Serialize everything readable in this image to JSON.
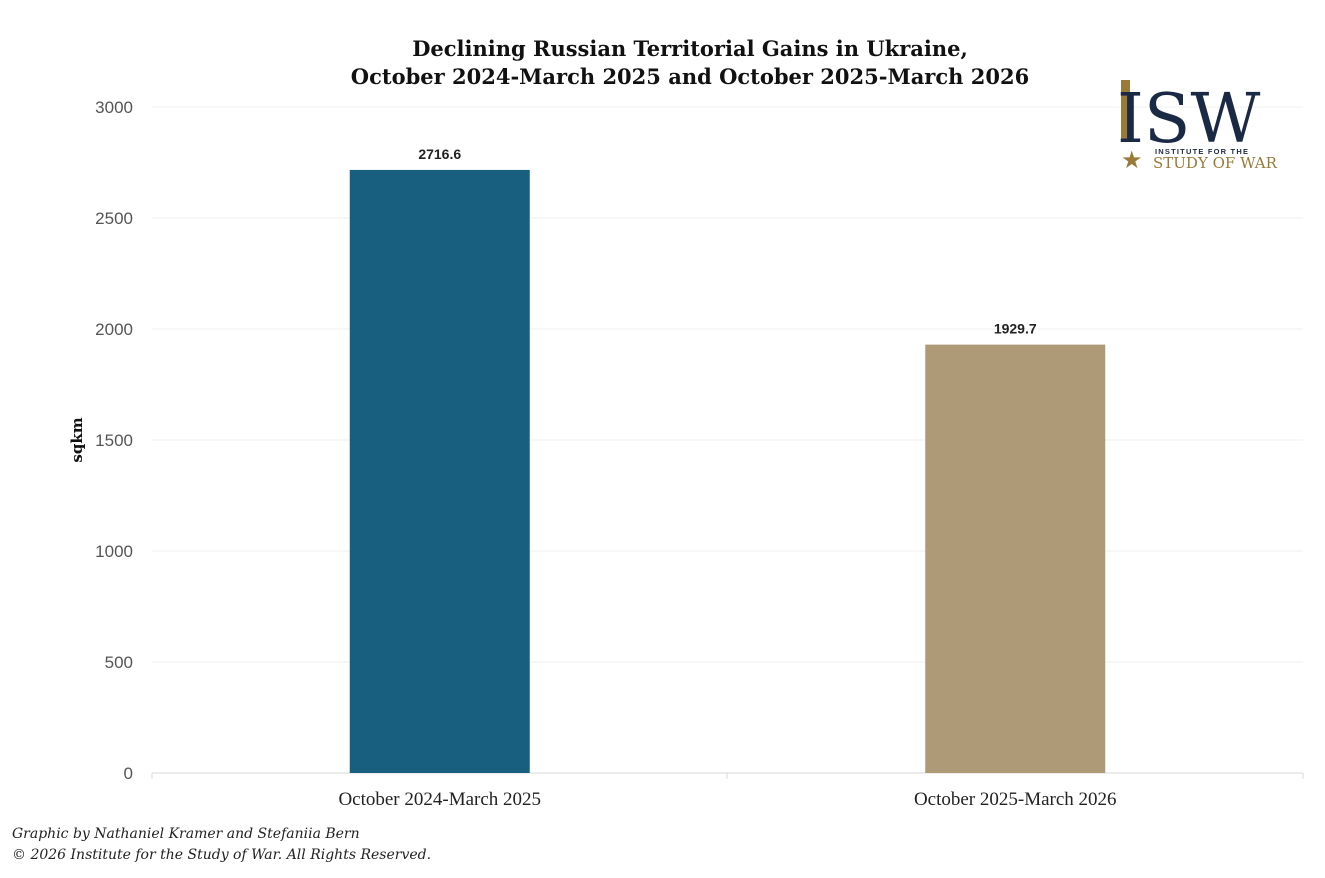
{
  "chart_data": {
    "type": "bar",
    "title_lines": [
      "Declining Russian Territorial Gains in Ukraine,",
      "October 2024-March 2025 and October 2025-March 2026"
    ],
    "xlabel": "",
    "ylabel": "sqkm",
    "categories": [
      "October 2024-March 2025",
      "October 2025-March 2026"
    ],
    "values": [
      2716.6,
      1929.7
    ],
    "data_labels": [
      "2716.6",
      "1929.7"
    ],
    "bar_colors": [
      "#175e7f",
      "#ae9a76"
    ],
    "ylim": [
      0,
      3000
    ],
    "yticks": [
      "0",
      "500",
      "1000",
      "1500",
      "2000",
      "2500",
      "3000"
    ],
    "grid": true,
    "legend": "none"
  },
  "logo": {
    "letters": "ISW",
    "tagline_top": "INSTITUTE FOR THE",
    "tagline_bottom": "STUDY OF WAR",
    "colors": {
      "navy": "#1b2a44",
      "gold": "#9a7a38"
    }
  },
  "credits": {
    "line1": "Graphic by Nathaniel Kramer and Stefaniia Bern",
    "line2": "© 2026 Institute for the Study of War. All Rights Reserved."
  }
}
